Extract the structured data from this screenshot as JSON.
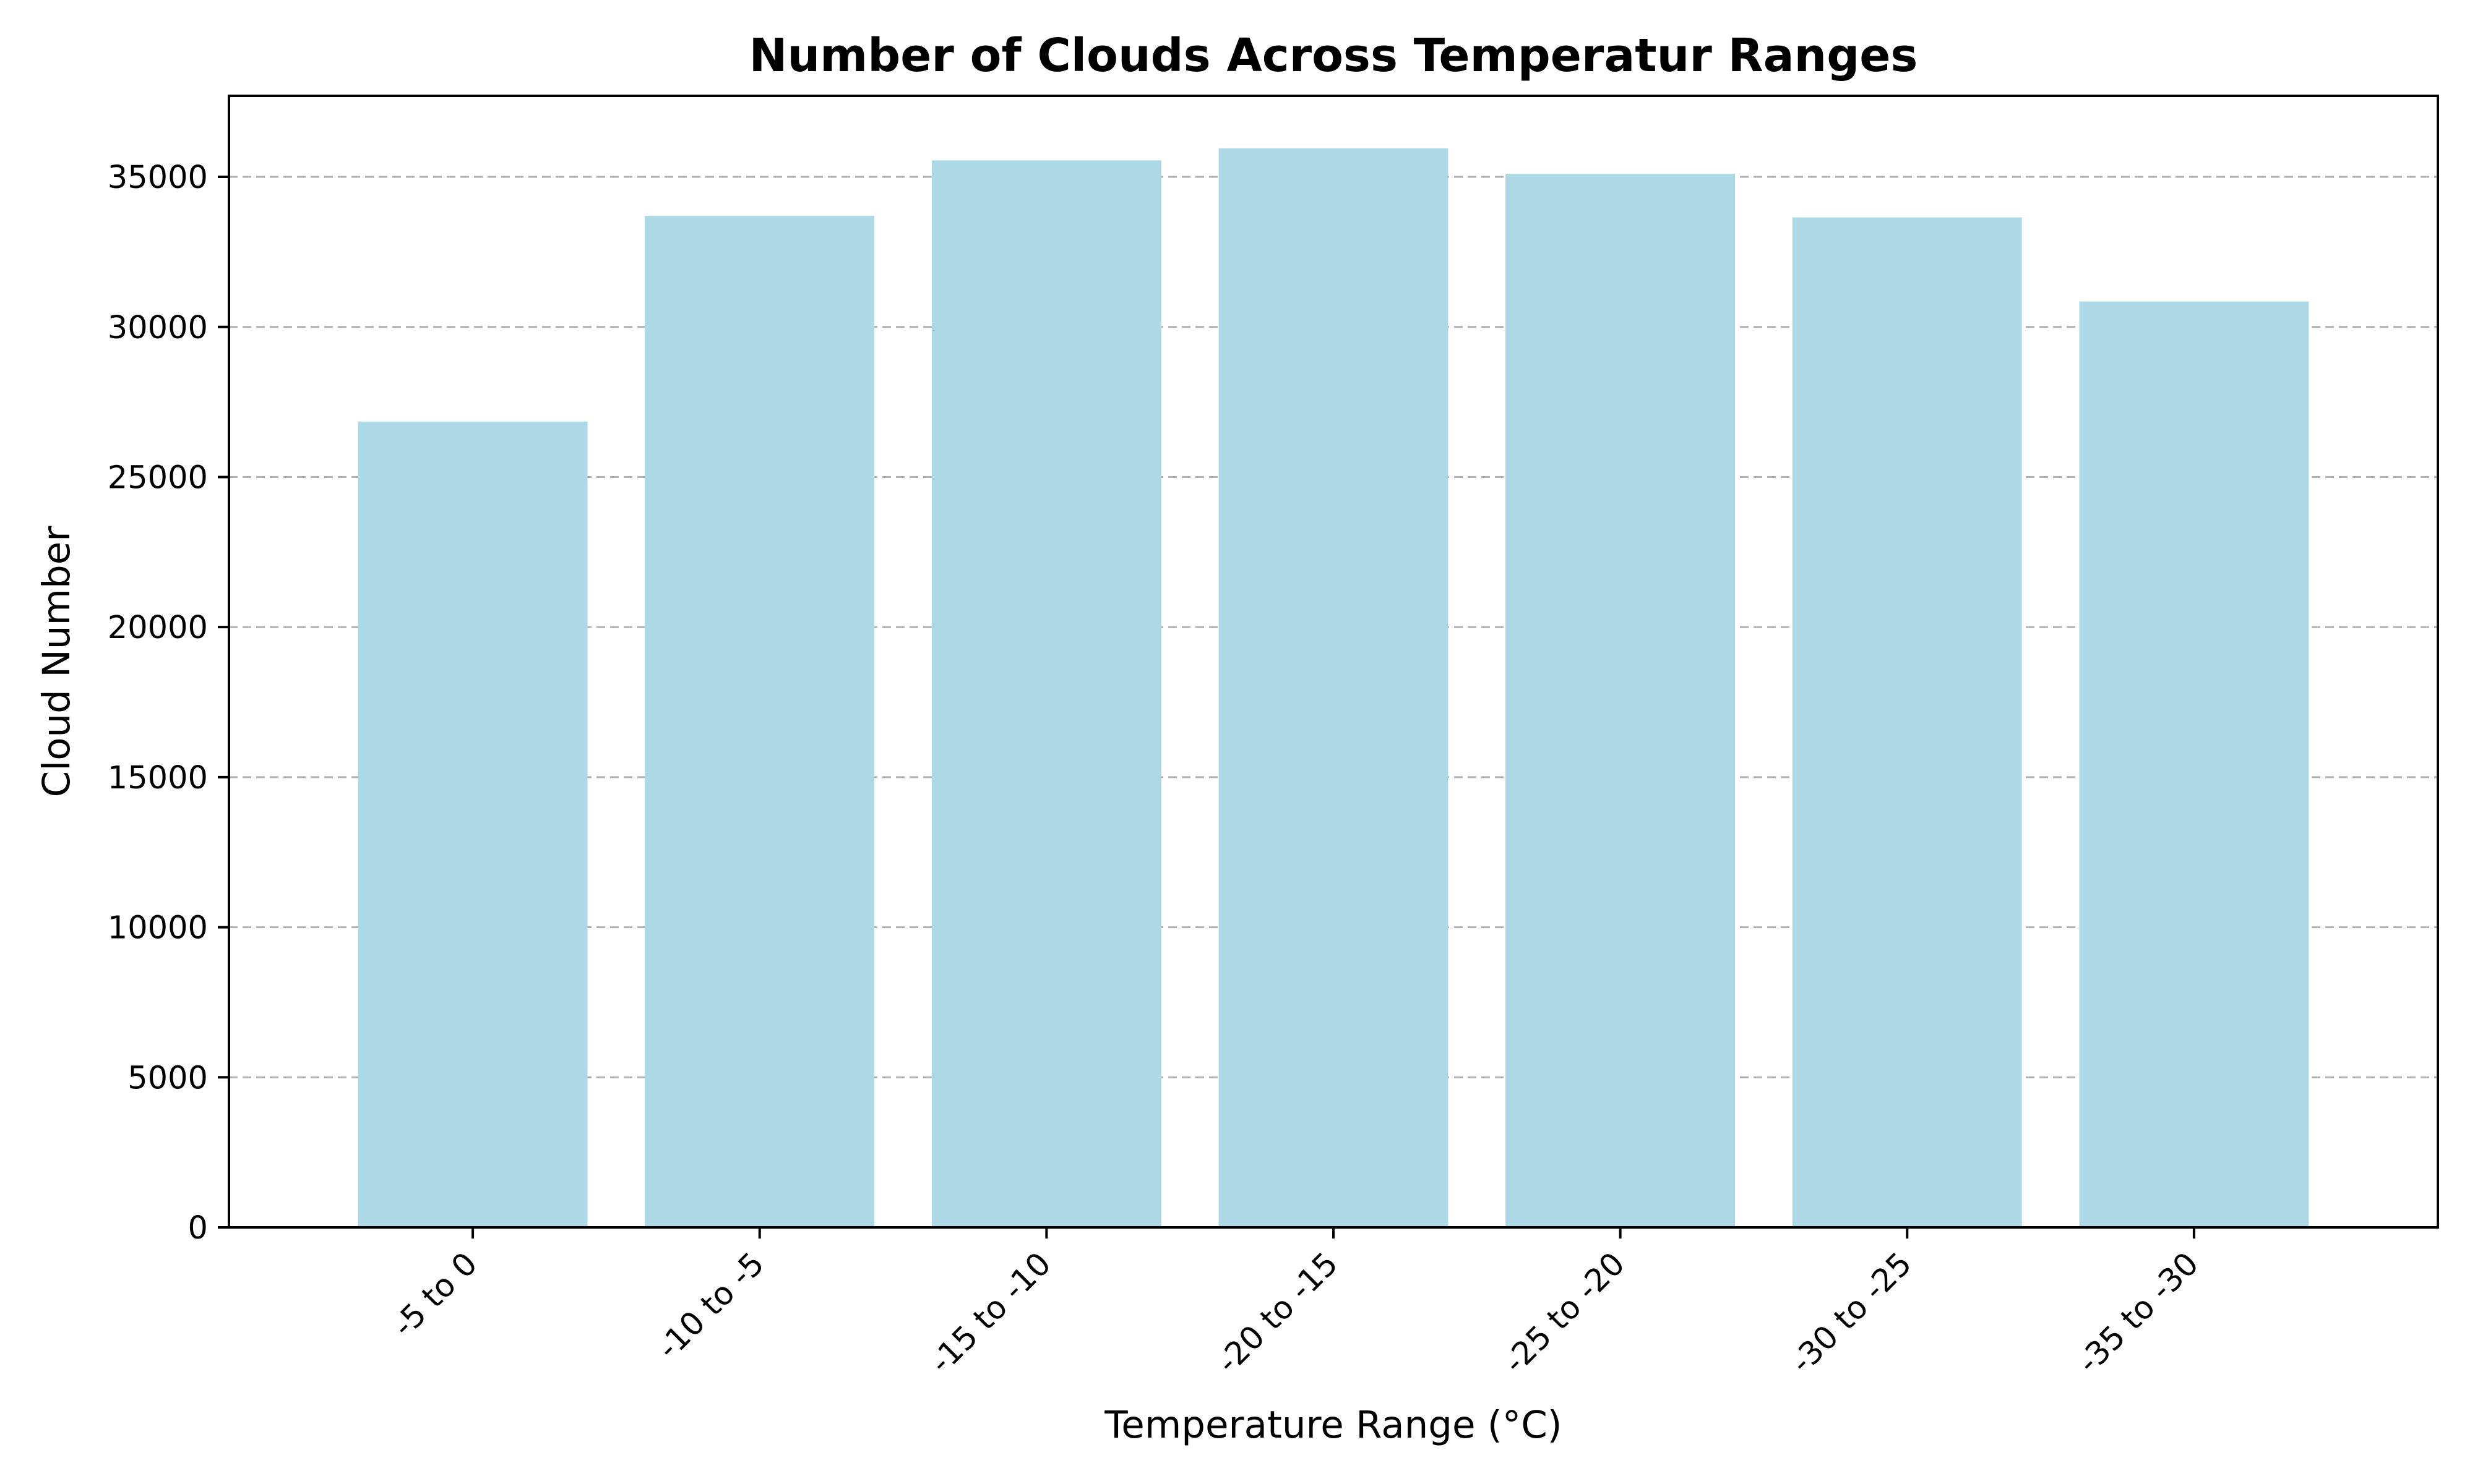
{
  "chart_data": {
    "type": "bar",
    "title": "Number of Clouds Across Temperatur Ranges",
    "xlabel": "Temperature Range (°C)",
    "ylabel": "Cloud Number",
    "categories": [
      "-5 to 0",
      "-10 to -5",
      "-15 to -10",
      "-20 to -15",
      "-25 to -20",
      "-30 to -25",
      "-35 to -30"
    ],
    "values": [
      26850,
      33700,
      35550,
      35950,
      35100,
      33650,
      30850
    ],
    "ylim": [
      0,
      37700
    ],
    "yticks": [
      0,
      5000,
      10000,
      15000,
      20000,
      25000,
      30000,
      35000
    ],
    "grid": "y-dashed",
    "bar_color": "#add8e6"
  }
}
